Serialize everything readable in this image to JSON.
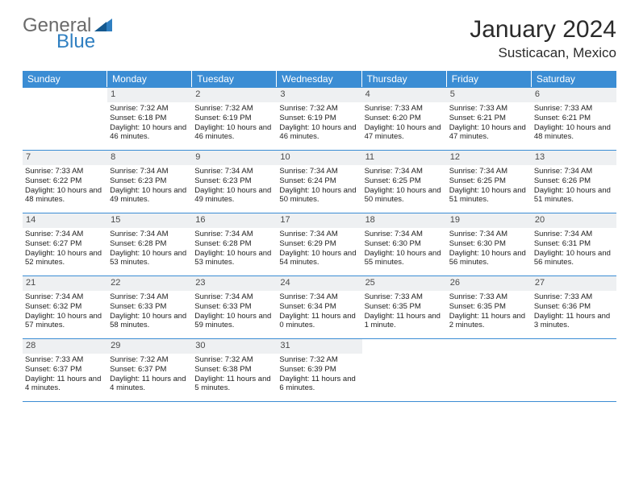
{
  "logo": {
    "text1": "General",
    "text2": "Blue"
  },
  "title": "January 2024",
  "location": "Susticacan, Mexico",
  "colors": {
    "header_bg": "#3b8dd4",
    "header_text": "#ffffff",
    "border": "#3b8dd4",
    "daynum_bg": "#eef0f2",
    "logo_gray": "#6a6a6a",
    "logo_blue": "#2f7fc1"
  },
  "dayNames": [
    "Sunday",
    "Monday",
    "Tuesday",
    "Wednesday",
    "Thursday",
    "Friday",
    "Saturday"
  ],
  "firstDayOffset": 1,
  "days": [
    {
      "n": 1,
      "sr": "7:32 AM",
      "ss": "6:18 PM",
      "dl": "10 hours and 46 minutes."
    },
    {
      "n": 2,
      "sr": "7:32 AM",
      "ss": "6:19 PM",
      "dl": "10 hours and 46 minutes."
    },
    {
      "n": 3,
      "sr": "7:32 AM",
      "ss": "6:19 PM",
      "dl": "10 hours and 46 minutes."
    },
    {
      "n": 4,
      "sr": "7:33 AM",
      "ss": "6:20 PM",
      "dl": "10 hours and 47 minutes."
    },
    {
      "n": 5,
      "sr": "7:33 AM",
      "ss": "6:21 PM",
      "dl": "10 hours and 47 minutes."
    },
    {
      "n": 6,
      "sr": "7:33 AM",
      "ss": "6:21 PM",
      "dl": "10 hours and 48 minutes."
    },
    {
      "n": 7,
      "sr": "7:33 AM",
      "ss": "6:22 PM",
      "dl": "10 hours and 48 minutes."
    },
    {
      "n": 8,
      "sr": "7:34 AM",
      "ss": "6:23 PM",
      "dl": "10 hours and 49 minutes."
    },
    {
      "n": 9,
      "sr": "7:34 AM",
      "ss": "6:23 PM",
      "dl": "10 hours and 49 minutes."
    },
    {
      "n": 10,
      "sr": "7:34 AM",
      "ss": "6:24 PM",
      "dl": "10 hours and 50 minutes."
    },
    {
      "n": 11,
      "sr": "7:34 AM",
      "ss": "6:25 PM",
      "dl": "10 hours and 50 minutes."
    },
    {
      "n": 12,
      "sr": "7:34 AM",
      "ss": "6:25 PM",
      "dl": "10 hours and 51 minutes."
    },
    {
      "n": 13,
      "sr": "7:34 AM",
      "ss": "6:26 PM",
      "dl": "10 hours and 51 minutes."
    },
    {
      "n": 14,
      "sr": "7:34 AM",
      "ss": "6:27 PM",
      "dl": "10 hours and 52 minutes."
    },
    {
      "n": 15,
      "sr": "7:34 AM",
      "ss": "6:28 PM",
      "dl": "10 hours and 53 minutes."
    },
    {
      "n": 16,
      "sr": "7:34 AM",
      "ss": "6:28 PM",
      "dl": "10 hours and 53 minutes."
    },
    {
      "n": 17,
      "sr": "7:34 AM",
      "ss": "6:29 PM",
      "dl": "10 hours and 54 minutes."
    },
    {
      "n": 18,
      "sr": "7:34 AM",
      "ss": "6:30 PM",
      "dl": "10 hours and 55 minutes."
    },
    {
      "n": 19,
      "sr": "7:34 AM",
      "ss": "6:30 PM",
      "dl": "10 hours and 56 minutes."
    },
    {
      "n": 20,
      "sr": "7:34 AM",
      "ss": "6:31 PM",
      "dl": "10 hours and 56 minutes."
    },
    {
      "n": 21,
      "sr": "7:34 AM",
      "ss": "6:32 PM",
      "dl": "10 hours and 57 minutes."
    },
    {
      "n": 22,
      "sr": "7:34 AM",
      "ss": "6:33 PM",
      "dl": "10 hours and 58 minutes."
    },
    {
      "n": 23,
      "sr": "7:34 AM",
      "ss": "6:33 PM",
      "dl": "10 hours and 59 minutes."
    },
    {
      "n": 24,
      "sr": "7:34 AM",
      "ss": "6:34 PM",
      "dl": "11 hours and 0 minutes."
    },
    {
      "n": 25,
      "sr": "7:33 AM",
      "ss": "6:35 PM",
      "dl": "11 hours and 1 minute."
    },
    {
      "n": 26,
      "sr": "7:33 AM",
      "ss": "6:35 PM",
      "dl": "11 hours and 2 minutes."
    },
    {
      "n": 27,
      "sr": "7:33 AM",
      "ss": "6:36 PM",
      "dl": "11 hours and 3 minutes."
    },
    {
      "n": 28,
      "sr": "7:33 AM",
      "ss": "6:37 PM",
      "dl": "11 hours and 4 minutes."
    },
    {
      "n": 29,
      "sr": "7:32 AM",
      "ss": "6:37 PM",
      "dl": "11 hours and 4 minutes."
    },
    {
      "n": 30,
      "sr": "7:32 AM",
      "ss": "6:38 PM",
      "dl": "11 hours and 5 minutes."
    },
    {
      "n": 31,
      "sr": "7:32 AM",
      "ss": "6:39 PM",
      "dl": "11 hours and 6 minutes."
    }
  ],
  "labels": {
    "sunrise": "Sunrise:",
    "sunset": "Sunset:",
    "daylight": "Daylight:"
  }
}
